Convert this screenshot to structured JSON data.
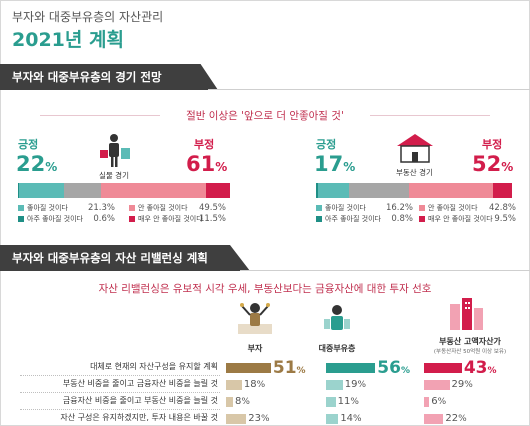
{
  "header": {
    "subtitle": "부자와 대중부유층의 자산관리",
    "title": "2021년 계획"
  },
  "section1": {
    "title": "부자와 대중부유층의 경기 전망",
    "tagline": "절반 이상은 '앞으로 더 안좋아질 것'",
    "positive_label": "긍정",
    "negative_label": "부정",
    "real_economy": {
      "caption": "실물 경기",
      "positive": "22",
      "negative": "61",
      "legend": [
        {
          "name": "좋아질 것이다",
          "value": "21.3%",
          "color": "#5bbbb6"
        },
        {
          "name": "안 좋아질 것이다",
          "value": "49.5%",
          "color": "#ef8a97"
        },
        {
          "name": "아주 좋아질 것이다",
          "value": "0.6%",
          "color": "#1f8f86"
        },
        {
          "name": "매우 안 좋아질 것이다",
          "value": "11.5%",
          "color": "#d21d4b"
        }
      ],
      "bar": {
        "very_good": 0.6,
        "good": 21.3,
        "neutral": 17.1,
        "bad": 49.5,
        "very_bad": 11.5
      }
    },
    "real_estate": {
      "caption": "부동산 경기",
      "positive": "17",
      "negative": "52",
      "legend": [
        {
          "name": "좋아질 것이다",
          "value": "16.2%",
          "color": "#5bbbb6"
        },
        {
          "name": "안 좋아질 것이다",
          "value": "42.8%",
          "color": "#ef8a97"
        },
        {
          "name": "아주 좋아질 것이다",
          "value": "0.8%",
          "color": "#1f8f86"
        },
        {
          "name": "매우 안 좋아질 것이다",
          "value": "9.5%",
          "color": "#d21d4b"
        }
      ],
      "bar": {
        "very_good": 0.8,
        "good": 16.2,
        "neutral": 30.7,
        "bad": 42.8,
        "very_bad": 9.5
      }
    },
    "pct_sign": "%"
  },
  "section2": {
    "title": "부자와 대중부유층의 자산 리밸런싱 계획",
    "tagline": "자산 리밸런싱은 유보적 시각 우세, 부동산보다는 금융자산에 대한 투자 선호",
    "columns": [
      {
        "name": "부자",
        "sub": "",
        "color": "#9c7a45",
        "light": "#d8c7a8"
      },
      {
        "name": "대중부유층",
        "sub": "",
        "color": "#2a9d8f",
        "light": "#9bd3cd"
      },
      {
        "name": "부동산 고액자산가",
        "sub": "(부동산자산 50억원 이상 보유)",
        "color": "#d21d4b",
        "light": "#f2a2b3"
      }
    ],
    "rows": [
      {
        "label": "대체로 현재의 자산구성을 유지할 계획",
        "values": [
          "51",
          "56",
          "43"
        ]
      },
      {
        "label": "부동산 비중을 줄이고 금융자산 비중을 늘릴 것",
        "values": [
          "18",
          "19",
          "29"
        ]
      },
      {
        "label": "금융자산 비중을 줄이고 부동산 비중을 늘릴 것",
        "values": [
          "8",
          "11",
          "6"
        ]
      },
      {
        "label": "자산 구성은 유지하겠지만, 투자 내용은 바꿀 것",
        "values": [
          "23",
          "14",
          "22"
        ]
      }
    ],
    "pct_sign": "%"
  }
}
